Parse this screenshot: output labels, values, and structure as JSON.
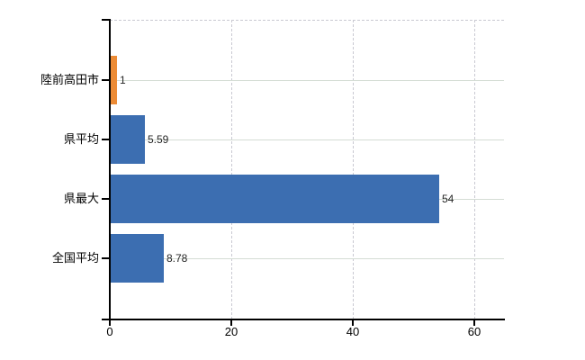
{
  "chart_data": {
    "type": "bar",
    "orientation": "horizontal",
    "title": "",
    "xlabel": "",
    "ylabel": "",
    "categories": [
      "陸前高田市",
      "県平均",
      "県最大",
      "全国平均"
    ],
    "values": [
      1,
      5.59,
      54,
      8.78
    ],
    "value_labels": [
      "1",
      "5.59",
      "54",
      "8.78"
    ],
    "x_tick_values": [
      0,
      20,
      40,
      60
    ],
    "x_tick_labels": [
      "0",
      "20",
      "40",
      "60"
    ],
    "xlim": [
      0,
      65
    ],
    "grid": true,
    "legend_position": "none",
    "bar_colors": [
      "#ec8b35",
      "#3c6eb1",
      "#3c6eb1",
      "#3c6eb1"
    ],
    "highlight_index": 0
  },
  "colors": {
    "background": "#ffffff",
    "bar_blue": "#3c6eb1",
    "bar_orange": "#ec8b35",
    "axis": "#000000",
    "vertical_gridline": "#c9c9d2",
    "row_gridline": "#d4dcd4",
    "value_label_text": "#262626",
    "category_label_text": "#000000"
  }
}
